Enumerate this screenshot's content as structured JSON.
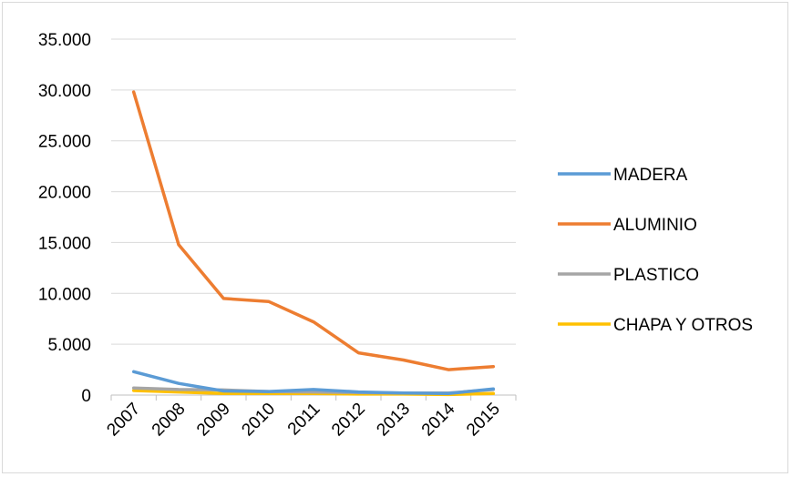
{
  "chart_data": {
    "type": "line",
    "categories": [
      "2007",
      "2008",
      "2009",
      "2010",
      "2011",
      "2012",
      "2013",
      "2014",
      "2015"
    ],
    "series": [
      {
        "name": "MADERA",
        "color": "#5b9bd5",
        "values": [
          2300,
          1150,
          400,
          350,
          550,
          300,
          200,
          150,
          600
        ]
      },
      {
        "name": "ALUMINIO",
        "color": "#ed7d31",
        "values": [
          29800,
          14800,
          9500,
          9200,
          7200,
          4150,
          3450,
          2500,
          2800
        ]
      },
      {
        "name": "PLASTICO",
        "color": "#a5a5a5",
        "values": [
          700,
          550,
          500,
          350,
          300,
          250,
          200,
          200,
          550
        ]
      },
      {
        "name": "CHAPA Y OTROS",
        "color": "#ffc000",
        "values": [
          450,
          300,
          150,
          150,
          150,
          100,
          100,
          50,
          150
        ]
      }
    ],
    "y_ticks": [
      "0",
      "5.000",
      "10.000",
      "15.000",
      "20.000",
      "25.000",
      "30.000",
      "35.000"
    ],
    "ylim": [
      0,
      35000
    ],
    "grid": true,
    "legend_position": "right"
  }
}
